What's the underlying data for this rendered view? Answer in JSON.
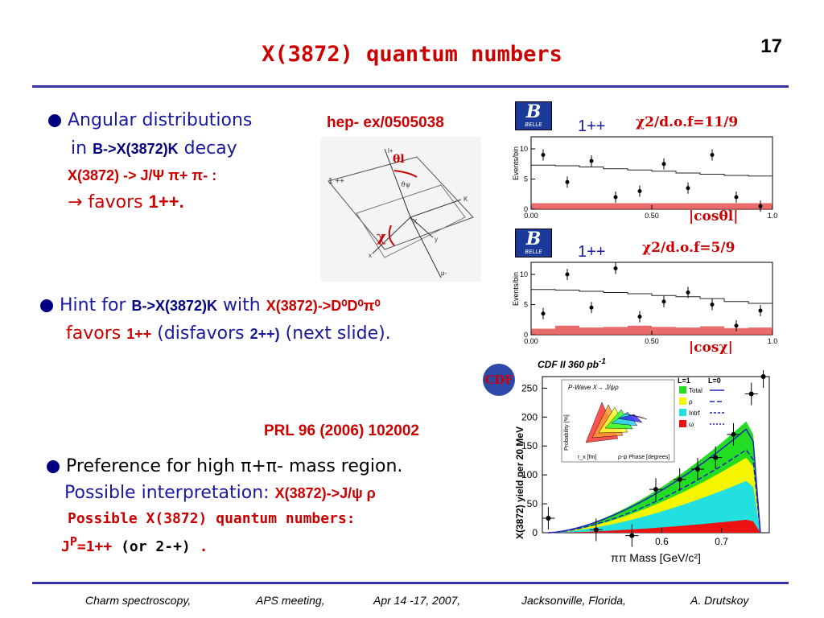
{
  "slide": {
    "title": "X(3872) quantum numbers",
    "page_number": "17"
  },
  "bullet1": {
    "line1": "Angular distributions",
    "line2_pre": "in ",
    "line2_mid": "B->X(3872)K",
    "line2_post": " decay",
    "decay": "X(3872) -> J/Ψ π+ π- :",
    "favors_arrow": "→",
    "favors_text": " favors ",
    "favors_value": "1++."
  },
  "reference_top": "hep- ex/0505038",
  "bullet2": {
    "pre": "Hint for ",
    "mode": "B->X(3872)K",
    "with": "  with ",
    "decay": "X(3872)->D⁰D⁰π⁰",
    "line2_a": "favors ",
    "line2_b": "1++",
    "line2_c": " (disfavors ",
    "line2_d": "2++)",
    "line2_e": "  (next slide)."
  },
  "reference_prl": "PRL 96 (2006) 102002",
  "bullet3": {
    "line1": "Preference for high π+π- mass region.",
    "line2_a": "Possible interpretation: ",
    "line2_b": "X(3872)->J/ψ ρ",
    "line3": "Possible X(3872) quantum numbers:",
    "line4_a": "J",
    "line4_sup": "P",
    "line4_b": "=1++",
    "line4_c": " (or 2-+)",
    "line4_d": " ."
  },
  "diagram": {
    "label_1pp": "1 ++",
    "theta_label": "θl",
    "chi_label": "χ",
    "axis_l_plus": "l+",
    "axis_l_minus": "μ-",
    "axis_x": "X",
    "axis_k": "K",
    "axis_y": "y",
    "axis_x2": "x",
    "psi_label": "ϑψ"
  },
  "belle_plots": [
    {
      "logo": "BELLE",
      "jpc": "1++",
      "chi2": "χ2/d.o.f=11/9",
      "xlabel": "|cosθl|",
      "ylabel": "Events/bin"
    },
    {
      "logo": "BELLE",
      "jpc": "1++",
      "chi2": "χ2/d.o.f=5/9",
      "xlabel": "|cosχ|",
      "ylabel": "Events/bin"
    }
  ],
  "cdf_plot": {
    "logo": "CDF",
    "header": "CDF II   360 pb",
    "header_sup": "-1",
    "ylabel": "X(3872) yield per 20 MeV",
    "xlabel": "ππ Mass [GeV/c²]",
    "inset_title": "P-Wave X→ J/ψρ",
    "inset_ylabel": "Probability [%]",
    "inset_xlabel": "ρ-ψ Phase [degrees]",
    "inset_zlabel": "r_x [fm]",
    "legend_head_l1": "L=1",
    "legend_head_l0": "L=0",
    "legend_items": [
      "Total",
      "ρ",
      "Intrf",
      "ω"
    ]
  },
  "chart_data": [
    {
      "type": "scatter",
      "title": "",
      "xlabel": "|cosθl|",
      "ylabel": "Events/bin",
      "xlim": [
        0,
        1
      ],
      "ylim": [
        0,
        12
      ],
      "x_ticks": [
        "0.00",
        "0.50",
        "1.0"
      ],
      "y_ticks": [
        "0",
        "5",
        "10"
      ],
      "series": [
        {
          "x": [
            0.05,
            0.15,
            0.25,
            0.35,
            0.45,
            0.55,
            0.65,
            0.75,
            0.85,
            0.95
          ],
          "values": [
            9,
            4.5,
            8,
            2,
            3,
            7.5,
            3.5,
            9,
            2,
            0.5
          ]
        }
      ],
      "curve": {
        "x": [
          0,
          0.1,
          0.2,
          0.3,
          0.4,
          0.5,
          0.6,
          0.7,
          0.8,
          0.9,
          1.0
        ],
        "values": [
          7.3,
          7.2,
          7,
          6.7,
          6.5,
          6.3,
          6,
          5.8,
          5.6,
          5.5,
          5.5
        ]
      },
      "background": [
        1,
        1,
        1,
        1,
        1,
        1,
        1,
        1,
        1,
        1
      ]
    },
    {
      "type": "scatter",
      "title": "",
      "xlabel": "|cosχ|",
      "ylabel": "Events/bin",
      "xlim": [
        0,
        1
      ],
      "ylim": [
        0,
        12
      ],
      "x_ticks": [
        "0.00",
        "0.50",
        "1.0"
      ],
      "y_ticks": [
        "0",
        "5",
        "10"
      ],
      "series": [
        {
          "x": [
            0.05,
            0.15,
            0.25,
            0.35,
            0.45,
            0.55,
            0.65,
            0.75,
            0.85,
            0.95
          ],
          "values": [
            3.5,
            10,
            4.5,
            11,
            3,
            5.5,
            7,
            5,
            1.5,
            4
          ]
        }
      ],
      "curve": {
        "x": [
          0,
          0.1,
          0.2,
          0.3,
          0.4,
          0.5,
          0.6,
          0.7,
          0.8,
          0.9,
          1.0
        ],
        "values": [
          7.5,
          7.4,
          7.2,
          7,
          6.8,
          6.5,
          6.3,
          6,
          5.5,
          5.2,
          5.2
        ]
      },
      "background": [
        1,
        1.5,
        1.2,
        1.3,
        1.5,
        1.3,
        1.2,
        1.4,
        1.1,
        1.2
      ]
    },
    {
      "type": "scatter",
      "title": "",
      "xlabel": "ππ Mass [GeV/c²]",
      "ylabel": "X(3872) yield per 20 MeV",
      "xlim": [
        0.4,
        0.78
      ],
      "ylim": [
        0,
        270
      ],
      "x_ticks": [
        "0.6",
        "0.7"
      ],
      "y_ticks": [
        "0",
        "50",
        "100",
        "150",
        "200",
        "250"
      ],
      "series": [
        {
          "x": [
            0.41,
            0.49,
            0.55,
            0.59,
            0.63,
            0.66,
            0.69,
            0.72,
            0.75,
            0.77
          ],
          "values": [
            25,
            5,
            -5,
            75,
            92,
            110,
            130,
            170,
            240,
            270
          ]
        }
      ]
    }
  ],
  "footer": {
    "talk": "Charm spectroscopy,",
    "meeting": "APS meeting,",
    "date": "Apr 14 -17, 2007,",
    "place": "Jacksonville, Florida,",
    "author": "A. Drutskoy"
  },
  "colors": {
    "title": "#cc0000",
    "bullet": "#000080",
    "text": "#1a1aa0",
    "rule": "#3333aa"
  }
}
